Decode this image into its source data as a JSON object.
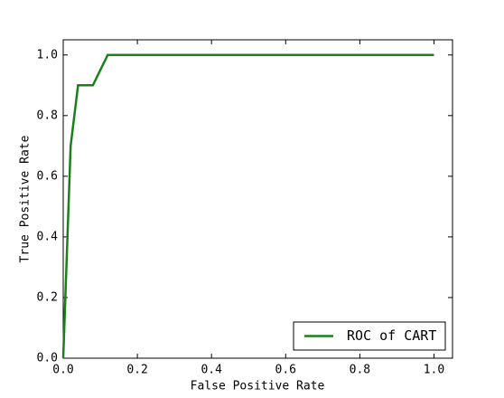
{
  "chart_data": {
    "type": "line",
    "x_label": "False Positive Rate",
    "y_label": "True Positive Rate",
    "x": [
      0,
      0.02,
      0.04,
      0.08,
      0.12,
      1.0
    ],
    "series": [
      {
        "name": "ROC of CART",
        "color": "#1a801a",
        "values": [
          0,
          0.7,
          0.9,
          0.9,
          1.0,
          1.0
        ]
      }
    ],
    "xlim": [
      0,
      1.05
    ],
    "ylim": [
      0,
      1.05
    ],
    "xticks": [
      {
        "value": 0,
        "label": "0.0"
      },
      0.2,
      0.4,
      0.6,
      0.8,
      {
        "value": 1,
        "label": "1.0"
      }
    ],
    "yticks": [
      {
        "value": 0,
        "label": "0.0"
      },
      0.2,
      0.4,
      0.6,
      0.8,
      {
        "value": 1,
        "label": "1.0"
      }
    ],
    "grid": false,
    "legend": "lower right"
  }
}
